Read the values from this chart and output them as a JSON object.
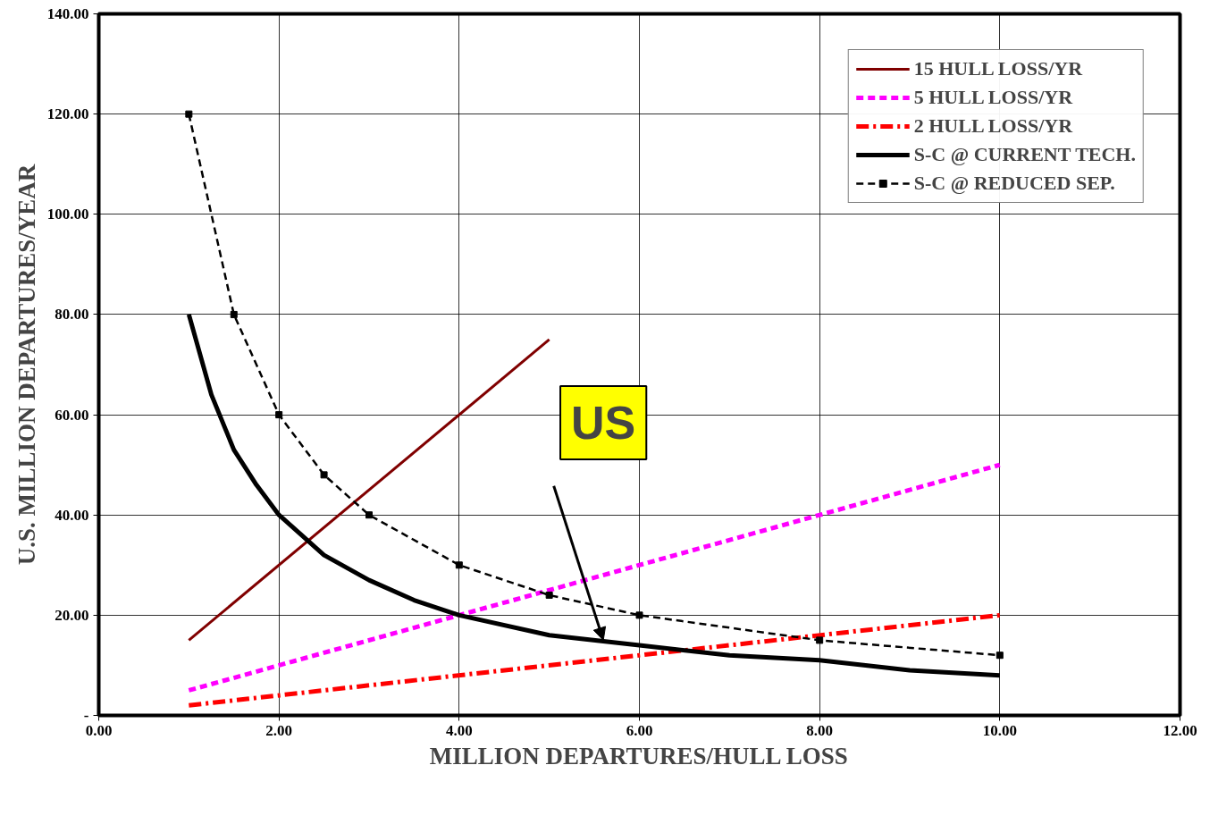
{
  "chart_data": {
    "type": "line",
    "xlabel": "MILLION DEPARTURES/HULL LOSS",
    "ylabel": "U.S. MILLION DEPARTURES/YEAR",
    "xlim": [
      0,
      12
    ],
    "ylim": [
      0,
      140
    ],
    "xticks": [
      {
        "value": 0,
        "label": "0.00"
      },
      {
        "value": 2,
        "label": "2.00"
      },
      {
        "value": 4,
        "label": "4.00"
      },
      {
        "value": 6,
        "label": "6.00"
      },
      {
        "value": 8,
        "label": "8.00"
      },
      {
        "value": 10,
        "label": "10.00"
      },
      {
        "value": 12,
        "label": "12.00"
      }
    ],
    "yticks": [
      {
        "value": 0,
        "label": "-"
      },
      {
        "value": 20,
        "label": "20.00"
      },
      {
        "value": 40,
        "label": "40.00"
      },
      {
        "value": 60,
        "label": "60.00"
      },
      {
        "value": 80,
        "label": "80.00"
      },
      {
        "value": 100,
        "label": "100.00"
      },
      {
        "value": 120,
        "label": "120.00"
      },
      {
        "value": 140,
        "label": "140.00"
      }
    ],
    "grid": true,
    "legend": "top right",
    "annotations": [
      {
        "text": "US",
        "x": 5.6,
        "y": 15
      }
    ],
    "series": [
      {
        "name": "15 HULL LOSS/YR",
        "color": "#800000",
        "line_style": "solid",
        "x": [
          1,
          5
        ],
        "values": [
          15,
          75
        ]
      },
      {
        "name": "5 HULL LOSS/YR",
        "color": "#ff00ff",
        "line_style": "dashed",
        "x": [
          1,
          10
        ],
        "values": [
          5,
          50
        ]
      },
      {
        "name": "2 HULL LOSS/YR",
        "color": "#ff0000",
        "line_style": "dashdot",
        "x": [
          1,
          10
        ],
        "values": [
          2,
          20
        ]
      },
      {
        "name": "S-C @ CURRENT TECH.",
        "color": "#000000",
        "line_style": "solid",
        "x": [
          1,
          1.25,
          1.5,
          1.75,
          2,
          2.5,
          3,
          3.5,
          4,
          5,
          6,
          7,
          8,
          9,
          10
        ],
        "values": [
          80,
          64,
          53,
          46,
          40,
          32,
          27,
          23,
          20,
          16,
          14,
          12,
          11,
          9,
          8
        ]
      },
      {
        "name": "S-C @ REDUCED SEP.",
        "color": "#000000",
        "line_style": "dashed",
        "marker": "square",
        "x": [
          1,
          1.5,
          2,
          2.5,
          3,
          4,
          5,
          6,
          8,
          10
        ],
        "values": [
          120,
          80,
          60,
          48,
          40,
          30,
          24,
          20,
          15,
          12
        ]
      }
    ]
  }
}
